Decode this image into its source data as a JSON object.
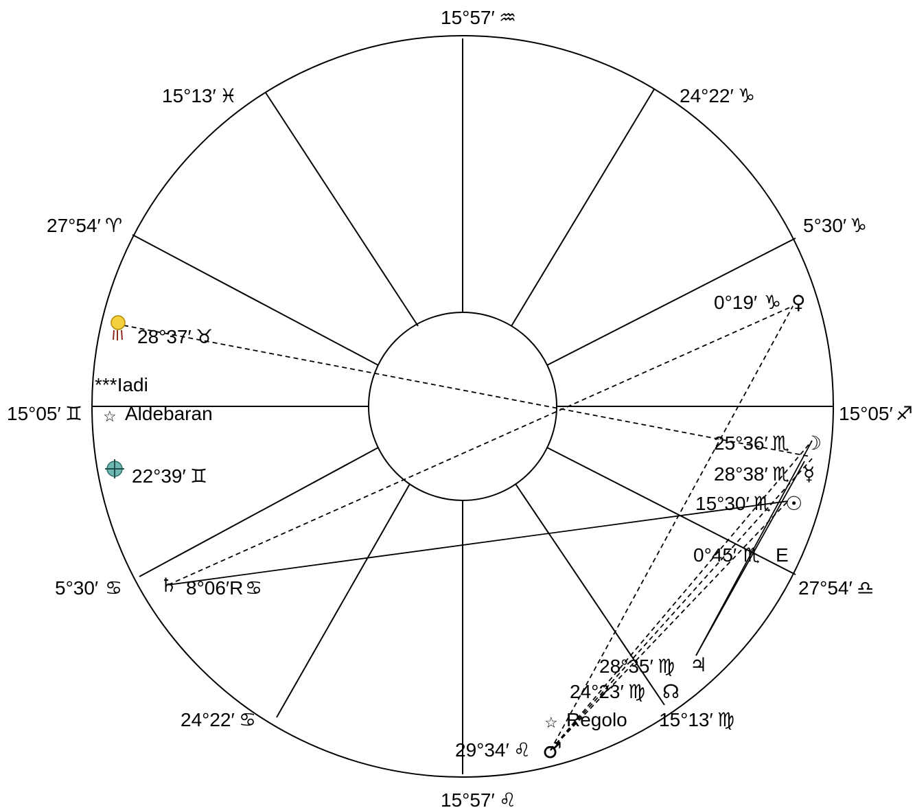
{
  "cusps": {
    "top": {
      "deg": "15°57′",
      "sign": "♒"
    },
    "pisces": {
      "deg": "15°13′",
      "sign": "♓"
    },
    "aries": {
      "deg": "27°54′",
      "sign": "♈"
    },
    "left": {
      "deg": "15°05′",
      "sign": "♊"
    },
    "cancer_a": {
      "deg": "5°30′",
      "sign": "♋"
    },
    "cancer_b": {
      "deg": "24°22′",
      "sign": "♋"
    },
    "bottom": {
      "deg": "15°57′",
      "sign": "♌"
    },
    "virgo": {
      "deg": "15°13′",
      "sign": "♍"
    },
    "libra": {
      "deg": "27°54′",
      "sign": "♎"
    },
    "right": {
      "deg": "15°05′",
      "sign": "♐"
    },
    "capricorn_a": {
      "deg": "5°30′",
      "sign": "♑"
    },
    "capricorn_b": {
      "deg": "24°22′",
      "sign": "♑"
    }
  },
  "bodies": {
    "venus": {
      "deg": "0°19′",
      "sign": "♑",
      "glyph": "♀"
    },
    "sun_figure": {
      "deg": "28°37′",
      "sign": "♉",
      "icon": "figure-icon"
    },
    "moon": {
      "deg": "25°36′",
      "sign": "♏",
      "glyph": "☽"
    },
    "mercury": {
      "deg": "28°38′",
      "sign": "♏",
      "glyph": "☿"
    },
    "sun": {
      "deg": "15°30′",
      "sign": "♏",
      "glyph": "☉"
    },
    "e_point": {
      "deg": "0°45′",
      "sign": "♏",
      "glyph": "E"
    },
    "saturn": {
      "deg": "8°06′R",
      "sign": "♋",
      "glyph": "♄"
    },
    "earth": {
      "deg": "22°39′",
      "sign": "♊",
      "icon": "earth-icon"
    },
    "jupiter": {
      "deg": "28°35′",
      "sign": "♍",
      "glyph": "♃"
    },
    "node": {
      "deg": "24°23′",
      "sign": "♍",
      "glyph": "☊"
    },
    "mars": {
      "deg": "29°34′",
      "sign": "♌",
      "glyph": "♂"
    }
  },
  "stars": {
    "iadi": "***Iadi",
    "aldebaran": "Aldebaran",
    "regolo": "Regolo",
    "star_glyph": "☆"
  }
}
